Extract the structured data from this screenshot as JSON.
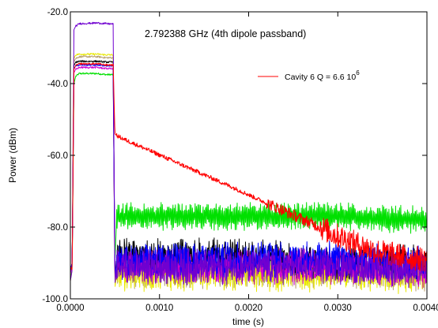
{
  "chart_data": {
    "type": "line",
    "title": "2.792388 GHz (4th dipole passband)",
    "xlabel": "time (s)",
    "ylabel": "Power (dBm)",
    "xlim": [
      0.0,
      0.004
    ],
    "ylim": [
      -100.0,
      -20.0
    ],
    "x_ticks": [
      {
        "value": 0.0,
        "label": "0.0000"
      },
      {
        "value": 0.001,
        "label": "0.0010"
      },
      {
        "value": 0.002,
        "label": "0.0020"
      },
      {
        "value": 0.003,
        "label": "0.0030"
      },
      {
        "value": 0.004,
        "label": "0.0040"
      }
    ],
    "y_ticks": [
      {
        "value": -20,
        "label": "-20.0"
      },
      {
        "value": -40,
        "label": "-40.0"
      },
      {
        "value": -60,
        "label": "-60.0"
      },
      {
        "value": -80,
        "label": "-80.0"
      },
      {
        "value": -100,
        "label": "-100.0"
      }
    ],
    "grid": false,
    "legend": {
      "position": "top-right",
      "entries": [
        {
          "series_index": 0,
          "text": "Cavity 6  Q = 6.6 10",
          "superscript": "6"
        }
      ]
    },
    "series": [
      {
        "name": "Cavity 6  Q = 6.6 10^6",
        "color": "#ff0000",
        "pulse_level": -34.5,
        "x": [
          0.0,
          2e-05,
          4e-05,
          6e-05,
          0.0001,
          0.0002,
          0.0003,
          0.0004,
          0.00048,
          0.0005,
          0.00052,
          0.0006,
          0.0008,
          0.001,
          0.0012,
          0.0014,
          0.0016,
          0.0018,
          0.002,
          0.0022,
          0.0024,
          0.0026,
          0.0028,
          0.003,
          0.0032,
          0.0034,
          0.0036,
          0.0038,
          0.004
        ],
        "y": [
          -91,
          -92,
          -36,
          -35,
          -34.5,
          -34.5,
          -34.5,
          -34.8,
          -34.8,
          -54,
          -54.5,
          -55.5,
          -57.7,
          -59.9,
          -62.1,
          -64.3,
          -66.5,
          -68.7,
          -71.0,
          -73.3,
          -75.5,
          -77.8,
          -80.0,
          -82.5,
          -84.5,
          -86.5,
          -87.5,
          -88.5,
          -89.0
        ]
      },
      {
        "color": "#00e000",
        "pulse_level": -37.2,
        "x": [
          0.0,
          2e-05,
          4e-05,
          6e-05,
          0.0001,
          0.0002,
          0.0003,
          0.0004,
          0.00048,
          0.0005,
          0.00052,
          0.001,
          0.002,
          0.003,
          0.004
        ],
        "y": [
          -94,
          -92,
          -40,
          -38,
          -37.2,
          -37.2,
          -37.2,
          -37.5,
          -37.5,
          -90,
          -77,
          -77,
          -77,
          -77,
          -78
        ]
      },
      {
        "color": "#000000",
        "pulse_level": -33.8,
        "x": [
          0.0,
          2e-05,
          4e-05,
          6e-05,
          0.0001,
          0.0002,
          0.0003,
          0.0004,
          0.00048,
          0.0005,
          0.00052,
          0.001,
          0.002,
          0.003,
          0.004
        ],
        "y": [
          -92,
          -90,
          -35,
          -34,
          -33.8,
          -33.8,
          -33.8,
          -34,
          -34,
          -95,
          -88,
          -88,
          -88,
          -90,
          -90
        ]
      },
      {
        "color": "#b8a070",
        "pulse_level": -32.5,
        "x": [
          0.0,
          2e-05,
          4e-05,
          6e-05,
          0.0001,
          0.0002,
          0.0003,
          0.0004,
          0.00048,
          0.0005,
          0.00052,
          0.001,
          0.002,
          0.003,
          0.004
        ],
        "y": [
          -93,
          -90,
          -34,
          -33,
          -32.5,
          -32.5,
          -32.5,
          -32.8,
          -32.8,
          -96,
          -92,
          -92,
          -92,
          -92,
          -93
        ]
      },
      {
        "color": "#e8e800",
        "pulse_level": -31.8,
        "x": [
          0.0,
          2e-05,
          4e-05,
          6e-05,
          0.0001,
          0.0002,
          0.0003,
          0.0004,
          0.00048,
          0.0005,
          0.00052,
          0.001,
          0.002,
          0.003,
          0.004
        ],
        "y": [
          -95,
          -92,
          -33,
          -32,
          -31.8,
          -31.8,
          -31.8,
          -32,
          -32,
          -97,
          -93,
          -93,
          -93,
          -93,
          -94
        ]
      },
      {
        "color": "#0000ff",
        "pulse_level": -34.8,
        "x": [
          0.0,
          2e-05,
          4e-05,
          6e-05,
          0.0001,
          0.0002,
          0.0003,
          0.0004,
          0.00048,
          0.0005,
          0.00052,
          0.001,
          0.002,
          0.003,
          0.004
        ],
        "y": [
          -92,
          -90,
          -36,
          -35,
          -34.8,
          -34.8,
          -34.8,
          -35,
          -35,
          -94,
          -90,
          -89,
          -89,
          -89,
          -90
        ]
      },
      {
        "color": "#d000d0",
        "pulse_level": -35.5,
        "x": [
          0.0,
          2e-05,
          4e-05,
          6e-05,
          0.0001,
          0.0002,
          0.0003,
          0.0004,
          0.00048,
          0.0005,
          0.00052,
          0.001,
          0.002,
          0.003,
          0.004
        ],
        "y": [
          -93,
          -91,
          -37,
          -36,
          -35.5,
          -35.5,
          -35.5,
          -35.8,
          -35.8,
          -95,
          -91,
          -91,
          -91,
          -91,
          -92
        ]
      },
      {
        "color": "#7000d0",
        "pulse_level": -23.3,
        "x": [
          0.0,
          2e-05,
          4e-05,
          6e-05,
          0.0001,
          0.0002,
          0.0003,
          0.0004,
          0.00048,
          0.0005,
          0.00052,
          0.001,
          0.002,
          0.003,
          0.004
        ],
        "y": [
          -95,
          -92,
          -25,
          -24,
          -23.3,
          -23.2,
          -23.1,
          -23.3,
          -23.4,
          -96,
          -91,
          -91,
          -91,
          -91,
          -92
        ]
      }
    ]
  }
}
